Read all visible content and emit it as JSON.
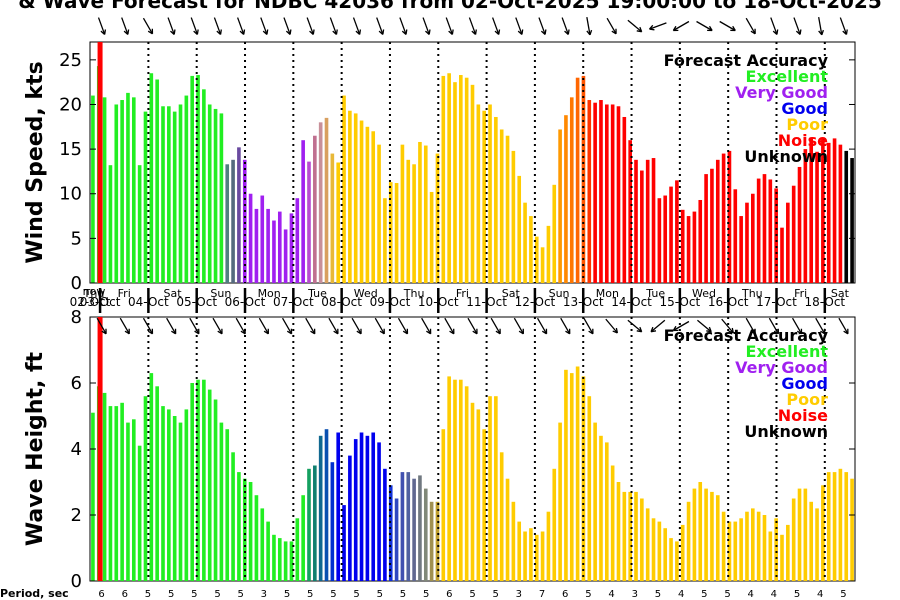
{
  "title": "& Wave Forecast for NDBC 42036 from 02-Oct-2025 19:00:00 to 18-Oct-2025",
  "now_label": "now",
  "legend": {
    "title": "Forecast Accuracy",
    "items": [
      {
        "label": "Excellent",
        "color": "#22ee22"
      },
      {
        "label": "Very Good",
        "color": "#a020f0"
      },
      {
        "label": "Good",
        "color": "#0000ee"
      },
      {
        "label": "Poor",
        "color": "#ffcc00"
      },
      {
        "label": "Noise",
        "color": "#ff0000"
      },
      {
        "label": "Unknown",
        "color": "#000000"
      }
    ]
  },
  "days": [
    {
      "day": "Thu",
      "date": "02-Oct"
    },
    {
      "day": "Fri",
      "date": "03-Oct"
    },
    {
      "day": "Sat",
      "date": "04-Oct"
    },
    {
      "day": "Sun",
      "date": "05-Oct"
    },
    {
      "day": "Mon",
      "date": "06-Oct"
    },
    {
      "day": "Tue",
      "date": "07-Oct"
    },
    {
      "day": "Wed",
      "date": "08-Oct"
    },
    {
      "day": "Thu",
      "date": "09-Oct"
    },
    {
      "day": "Fri",
      "date": "10-Oct"
    },
    {
      "day": "Sat",
      "date": "11-Oct"
    },
    {
      "day": "Sun",
      "date": "12-Oct"
    },
    {
      "day": "Mon",
      "date": "13-Oct"
    },
    {
      "day": "Tue",
      "date": "14-Oct"
    },
    {
      "day": "Wed",
      "date": "15-Oct"
    },
    {
      "day": "Thu",
      "date": "16-Oct"
    },
    {
      "day": "Fri",
      "date": "17-Oct"
    },
    {
      "day": "Sat",
      "date": "18-Oct"
    }
  ],
  "period_label": "Period, sec",
  "periods": [
    "6",
    "6",
    "5",
    "5",
    "5",
    "5",
    "5",
    "3",
    "5",
    "5",
    "5",
    "5",
    "5",
    "5",
    "5",
    "6",
    "5",
    "5",
    "3",
    "7",
    "6",
    "5",
    "4",
    "3",
    "5",
    "4",
    "5",
    "5",
    "4",
    "4",
    "5",
    "4",
    "5"
  ],
  "chart_data": [
    {
      "type": "bar",
      "name": "wind",
      "ylabel": "Wind Speed, kts",
      "ylim": [
        0,
        27
      ],
      "yticks": [
        0,
        5,
        10,
        15,
        20,
        25
      ],
      "x_unit": "hours since 02-Oct 19:00",
      "x_range": [
        0,
        380
      ],
      "values": [
        21,
        24.3,
        20.8,
        13.2,
        20,
        20.5,
        21.3,
        20.8,
        13.2,
        19.2,
        23.5,
        22.8,
        19.8,
        19.8,
        19.2,
        20,
        21,
        23.2,
        23.3,
        21.7,
        20,
        19.5,
        19,
        13.3,
        13.8,
        15.2,
        13.8,
        10,
        8.3,
        9.8,
        8.3,
        7,
        8,
        6,
        7.8,
        9.5,
        16,
        13.6,
        16.5,
        18,
        18.5,
        14.5,
        13.5,
        21,
        19.3,
        19,
        18.2,
        17.5,
        17,
        15.5,
        9.5,
        11.3,
        11.2,
        15.5,
        13.8,
        13.3,
        15.8,
        15.4,
        10.2,
        14.5,
        23.2,
        23.5,
        22.5,
        23.3,
        23,
        22.2,
        20,
        19.3,
        20,
        18.6,
        17.2,
        16.5,
        14.8,
        12,
        9,
        7.5,
        5.2,
        4,
        6.4,
        11,
        17.2,
        18.8,
        20.8,
        23,
        23.2,
        20.5,
        20.2,
        20.5,
        20,
        20,
        19.8,
        18.6,
        16,
        13.8,
        12.6,
        13.8,
        14,
        9.5,
        9.8,
        10.8,
        11.5,
        8.2,
        7.5,
        8,
        9.3,
        12.2,
        12.8,
        13.8,
        14.5,
        14.8,
        10.5,
        7.5,
        9,
        10,
        11.7,
        12.2,
        11.6,
        10.6,
        6.2,
        9,
        10.9,
        13,
        15,
        16.3,
        14.7,
        16.2,
        15.7,
        16.2,
        15.5,
        14.8,
        14
      ],
      "colors": [
        "#22ee22",
        "#22ee22",
        "#22ee22",
        "#22ee22",
        "#22ee22",
        "#22ee22",
        "#22ee22",
        "#22ee22",
        "#22ee22",
        "#22ee22",
        "#22ee22",
        "#22ee22",
        "#22ee22",
        "#22ee22",
        "#22ee22",
        "#22ee22",
        "#22ee22",
        "#22ee22",
        "#22ee22",
        "#22ee22",
        "#22ee22",
        "#22ee22",
        "#22ee22",
        "#4f7f80",
        "#556b7f",
        "#6a4aa0",
        "#a020f0",
        "#a020f0",
        "#a020f0",
        "#a020f0",
        "#a020f0",
        "#a020f0",
        "#a020f0",
        "#a020f0",
        "#a020f0",
        "#a020f0",
        "#a020f0",
        "#b84bd0",
        "#c07090",
        "#c8909a",
        "#d8a060",
        "#e8b838",
        "#ffcc00",
        "#ffcc00",
        "#ffcc00",
        "#ffcc00",
        "#ffcc00",
        "#ffcc00",
        "#ffcc00",
        "#ffcc00",
        "#ffcc00",
        "#ffcc00",
        "#ffcc00",
        "#ffcc00",
        "#ffcc00",
        "#ffcc00",
        "#ffcc00",
        "#ffcc00",
        "#ffcc00",
        "#ffcc00",
        "#ffcc00",
        "#ffcc00",
        "#ffcc00",
        "#ffcc00",
        "#ffcc00",
        "#ffcc00",
        "#ffcc00",
        "#ffcc00",
        "#ffcc00",
        "#ffcc00",
        "#ffcc00",
        "#ffcc00",
        "#ffcc00",
        "#ffcc00",
        "#ffcc00",
        "#ffcc00",
        "#ffcc00",
        "#ffcc00",
        "#ffcc00",
        "#ffcc00",
        "#ff9900",
        "#ff8800",
        "#ff7700",
        "#ff6600",
        "#ff5500",
        "#ff3300",
        "#ff0000",
        "#ff0000",
        "#ff0000",
        "#ff0000",
        "#ff0000",
        "#ff0000",
        "#ff0000",
        "#ff0000",
        "#ff0000",
        "#ff0000",
        "#ff0000",
        "#ff0000",
        "#ff0000",
        "#ff0000",
        "#ff0000",
        "#ff0000",
        "#ff0000",
        "#ff0000",
        "#ff0000",
        "#ff0000",
        "#ff0000",
        "#ff0000",
        "#ff0000",
        "#ff0000",
        "#ff0000",
        "#ff0000",
        "#ff0000",
        "#ff0000",
        "#ff0000",
        "#ff0000",
        "#ff0000",
        "#ff0000",
        "#ff0000",
        "#ff0000",
        "#ff0000",
        "#ff0000",
        "#ff0000",
        "#ff0000",
        "#ff0000",
        "#ff0000",
        "#ff0000",
        "#ff0000",
        "#ff0000"
      ],
      "now_x": 5,
      "day_boundaries": [
        5,
        29,
        53,
        77,
        101,
        125,
        149,
        173,
        197,
        221,
        245,
        269,
        293,
        317,
        341,
        365
      ],
      "direction_arrows_deg": [
        290,
        290,
        300,
        290,
        290,
        290,
        290,
        290,
        290,
        290,
        290,
        290,
        290,
        290,
        290,
        290,
        290,
        290,
        290,
        290,
        290,
        280,
        300,
        320,
        200,
        210,
        330,
        330,
        300,
        290,
        290,
        280,
        290
      ],
      "legend_position": "top-right"
    },
    {
      "type": "bar",
      "name": "wave",
      "ylabel": "Wave Height, ft",
      "ylim": [
        0,
        8
      ],
      "yticks": [
        0,
        2,
        4,
        6,
        8
      ],
      "x_unit": "hours since 02-Oct 19:00",
      "x_range": [
        0,
        380
      ],
      "values": [
        5.1,
        5.9,
        5.7,
        5.3,
        5.3,
        5.4,
        4.8,
        4.9,
        4.1,
        5.6,
        6.3,
        5.9,
        5.3,
        5.2,
        5,
        4.8,
        5.2,
        6,
        6.1,
        6.1,
        5.8,
        5.5,
        4.8,
        4.6,
        3.9,
        3.3,
        3.1,
        3,
        2.6,
        2.2,
        1.8,
        1.4,
        1.3,
        1.2,
        1.2,
        1.9,
        2.6,
        3.4,
        3.5,
        4.4,
        4.6,
        3.6,
        4.5,
        2.3,
        3.8,
        4.3,
        4.5,
        4.4,
        4.5,
        4.2,
        3.4,
        2.9,
        2.5,
        3.3,
        3.3,
        3.1,
        3.2,
        2.8,
        2.4,
        2.4,
        4.6,
        6.2,
        6.1,
        6.1,
        5.9,
        5.4,
        5.2,
        4.6,
        5.6,
        5.6,
        3.9,
        3.1,
        2.4,
        1.8,
        1.5,
        1.6,
        1.4,
        1.5,
        2.1,
        3.4,
        4.8,
        6.4,
        6.3,
        6.5,
        6.2,
        5.6,
        4.8,
        4.4,
        4.2,
        3.5,
        3,
        2.7,
        2.7,
        2.7,
        2.5,
        2.2,
        1.9,
        1.8,
        1.6,
        1.3,
        1.2,
        1.7,
        2.4,
        2.8,
        3,
        2.8,
        2.7,
        2.6,
        2.1,
        1.8,
        1.8,
        1.9,
        2.1,
        2.2,
        2.1,
        2,
        1.5,
        1.9,
        1.4,
        1.7,
        2.5,
        2.8,
        2.8,
        2.4,
        2.2,
        2.9,
        3.3,
        3.3,
        3.4,
        3.3,
        3.1
      ],
      "colors": [
        "#22ee22",
        "#22ee22",
        "#22ee22",
        "#22ee22",
        "#22ee22",
        "#22ee22",
        "#22ee22",
        "#22ee22",
        "#22ee22",
        "#22ee22",
        "#22ee22",
        "#22ee22",
        "#22ee22",
        "#22ee22",
        "#22ee22",
        "#22ee22",
        "#22ee22",
        "#22ee22",
        "#22ee22",
        "#22ee22",
        "#22ee22",
        "#22ee22",
        "#22ee22",
        "#22ee22",
        "#22ee22",
        "#22ee22",
        "#22ee22",
        "#22ee22",
        "#22ee22",
        "#22ee22",
        "#22ee22",
        "#22ee22",
        "#22ee22",
        "#22ee22",
        "#22ee22",
        "#22ee22",
        "#22ee22",
        "#15a060",
        "#108070",
        "#106890",
        "#0a50b0",
        "#0030d0",
        "#0000ee",
        "#0000ee",
        "#0000ee",
        "#0000ee",
        "#0000ee",
        "#0000ee",
        "#0000ee",
        "#0000ee",
        "#0000ee",
        "#1030d8",
        "#3048c0",
        "#4050b0",
        "#5060a0",
        "#606890",
        "#707880",
        "#808878",
        "#a09050",
        "#c0a030",
        "#ffcc00",
        "#ffcc00",
        "#ffcc00",
        "#ffcc00",
        "#ffcc00",
        "#ffcc00",
        "#ffcc00",
        "#ffcc00",
        "#ffcc00",
        "#ffcc00",
        "#ffcc00",
        "#ffcc00",
        "#ffcc00",
        "#ffcc00",
        "#ffcc00",
        "#ffcc00",
        "#ffcc00",
        "#ffcc00",
        "#ffcc00",
        "#ffcc00",
        "#ffcc00",
        "#ffcc00",
        "#ffcc00",
        "#ffcc00",
        "#ffcc00",
        "#ffcc00",
        "#ffcc00",
        "#ffcc00",
        "#ffcc00",
        "#ffcc00",
        "#ffcc00",
        "#ffcc00",
        "#ffcc00",
        "#ffcc00",
        "#ffcc00",
        "#ffcc00",
        "#ffcc00",
        "#ffcc00",
        "#ffcc00",
        "#ffcc00",
        "#ffcc00",
        "#ffcc00",
        "#ffcc00",
        "#ffcc00",
        "#ffcc00",
        "#ffcc00",
        "#ffcc00",
        "#ffcc00",
        "#ffcc00",
        "#ffcc00",
        "#ffcc00",
        "#ffcc00",
        "#ffcc00",
        "#ffcc00",
        "#ffcc00",
        "#ffcc00",
        "#ffcc00",
        "#ffcc00",
        "#ffcc00",
        "#ffcc00",
        "#ffcc00",
        "#ffcc00",
        "#ffcc00",
        "#ffcc00",
        "#ffcc00",
        "#ffcc00",
        "#ffcc00",
        "#ffcc00",
        "#ffcc00",
        "#ffcc00",
        "#ffcc00",
        "#ffcc00",
        "#ffcc00"
      ],
      "now_x": 5,
      "day_boundaries": [
        5,
        29,
        53,
        77,
        101,
        125,
        149,
        173,
        197,
        221,
        245,
        269,
        293,
        317,
        341,
        365
      ],
      "direction_arrows_deg": [
        300,
        300,
        300,
        300,
        300,
        300,
        300,
        300,
        300,
        300,
        300,
        300,
        300,
        300,
        300,
        300,
        300,
        300,
        300,
        300,
        300,
        300,
        310,
        320,
        220,
        210,
        320,
        310,
        300,
        300,
        300,
        300,
        300
      ],
      "legend_position": "top-right"
    }
  ]
}
